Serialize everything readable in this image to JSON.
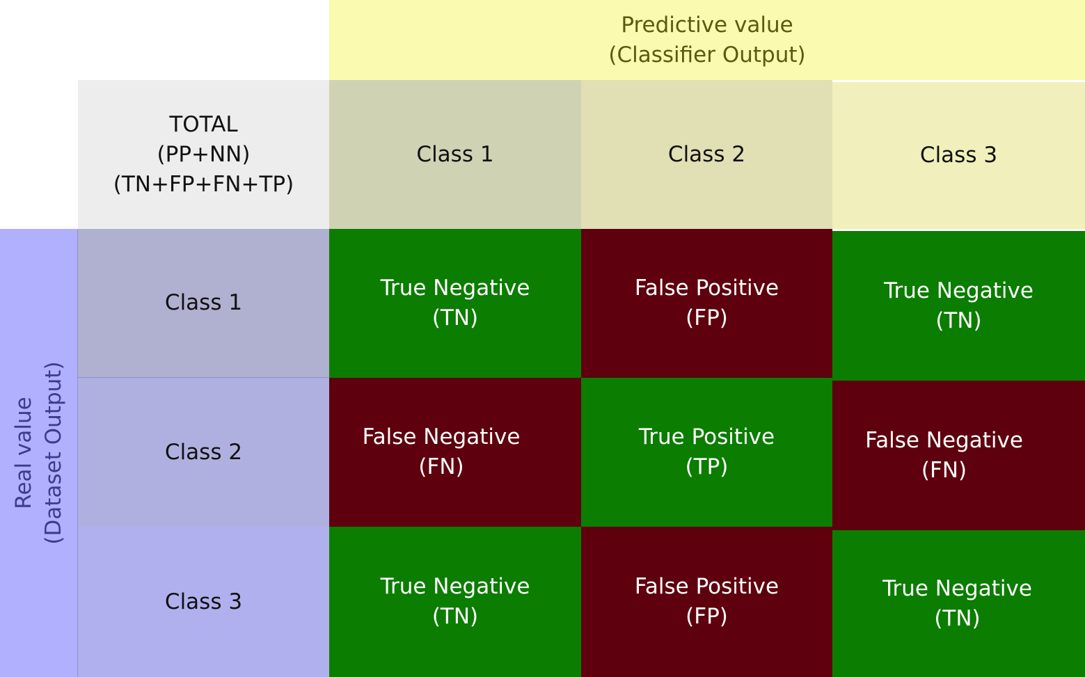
{
  "colors": {
    "predictive_band": "#fafab0",
    "total_cell": "#ededed",
    "col_1": "#d0d2b4",
    "col_2": "#e1dfb4",
    "col_3": "#f1efbb",
    "real_band": "#b0b0fe",
    "row_1": "#b0b0d0",
    "row_2": "#b0b0e0",
    "row_3": "#b0b0ee",
    "true_cell": "#0b7d00",
    "false_cell": "#5e000e"
  },
  "header": {
    "predictive_line1": "Predictive value",
    "predictive_line2": "(Classifier Output)",
    "total_line1": "TOTAL",
    "total_line2": "(PP+NN)",
    "total_line3": "(TN+FP+FN+TP)",
    "columns": [
      "Class 1",
      "Class 2",
      "Class 3"
    ]
  },
  "side": {
    "real_line1": "Real value",
    "real_line2": "(Dataset Output)",
    "rows": [
      "Class 1",
      "Class 2",
      "Class 3"
    ]
  },
  "matrix": [
    [
      {
        "kind": "true",
        "label": "True Negative",
        "abbr": "(TN)"
      },
      {
        "kind": "false",
        "label": "False Positive",
        "abbr": "(FP)"
      },
      {
        "kind": "true",
        "label": "True Negative",
        "abbr": "(TN)"
      }
    ],
    [
      {
        "kind": "false",
        "label": "False Negative",
        "abbr": "(FN)"
      },
      {
        "kind": "true",
        "label": "True Positive",
        "abbr": "(TP)"
      },
      {
        "kind": "false",
        "label": "False Negative",
        "abbr": "(FN)"
      }
    ],
    [
      {
        "kind": "true",
        "label": "True Negative",
        "abbr": "(TN)"
      },
      {
        "kind": "false",
        "label": "False Positive",
        "abbr": "(FP)"
      },
      {
        "kind": "true",
        "label": "True Negative",
        "abbr": "(TN)"
      }
    ]
  ]
}
